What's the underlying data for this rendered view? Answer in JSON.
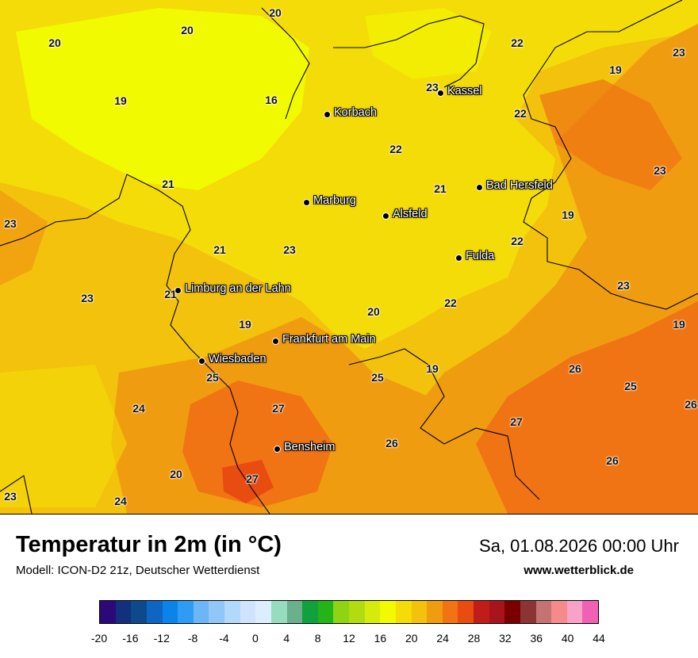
{
  "header": {
    "title": "Temperatur in 2m (in °C)",
    "model": "Modell: ICON-D2 21z, Deutscher Wetterdienst",
    "datetime": "Sa, 01.08.2026 00:00 Uhr",
    "website": "www.wetterblick.de"
  },
  "cities": [
    {
      "name": "Kassel"
    },
    {
      "name": "Korbach"
    },
    {
      "name": "Bad Hersfeld"
    },
    {
      "name": "Marburg"
    },
    {
      "name": "Alsfeld"
    },
    {
      "name": "Fulda"
    },
    {
      "name": "Limburg an der Lahn"
    },
    {
      "name": "Frankfurt am Main"
    },
    {
      "name": "Wiesbaden"
    },
    {
      "name": "Bensheim"
    }
  ],
  "temperatures": [
    "20",
    "20",
    "20",
    "22",
    "23",
    "19",
    "19",
    "16",
    "23",
    "22",
    "22",
    "21",
    "23",
    "21",
    "19",
    "23",
    "21",
    "23",
    "22",
    "23",
    "23",
    "20",
    "22",
    "19",
    "19",
    "25",
    "26",
    "25",
    "26",
    "24",
    "27",
    "27",
    "26",
    "25",
    "20",
    "27",
    "26",
    "23",
    "24",
    "21",
    "19"
  ],
  "legend": {
    "ticks": [
      "-20",
      "-16",
      "-12",
      "-8",
      "-4",
      "0",
      "4",
      "8",
      "12",
      "16",
      "20",
      "24",
      "28",
      "32",
      "36",
      "40",
      "44"
    ],
    "colors": [
      "#2c0878",
      "#12307c",
      "#0c4a8c",
      "#0e66c2",
      "#0a84e8",
      "#2e9cf4",
      "#6cb6f6",
      "#90c6f8",
      "#b2d8fa",
      "#cfe4fc",
      "#dceefe",
      "#98dcc0",
      "#6ab08c",
      "#10a03c",
      "#22b418",
      "#8cd414",
      "#b0dc10",
      "#d6ea0c",
      "#f2fa00",
      "#f4dc08",
      "#f2c20c",
      "#f09c10",
      "#f07414",
      "#e84c10",
      "#c01c18",
      "#a8141c",
      "#7a0000",
      "#8c3434",
      "#c47272",
      "#f48a8a",
      "#f8a2c8",
      "#f060b4"
    ]
  },
  "map_colors": {
    "base": "#f2c20c",
    "cool": "#f4dc08",
    "cooler": "#f2fa00",
    "warm": "#f09c10",
    "warmer": "#f07414",
    "hot": "#e84c10"
  }
}
